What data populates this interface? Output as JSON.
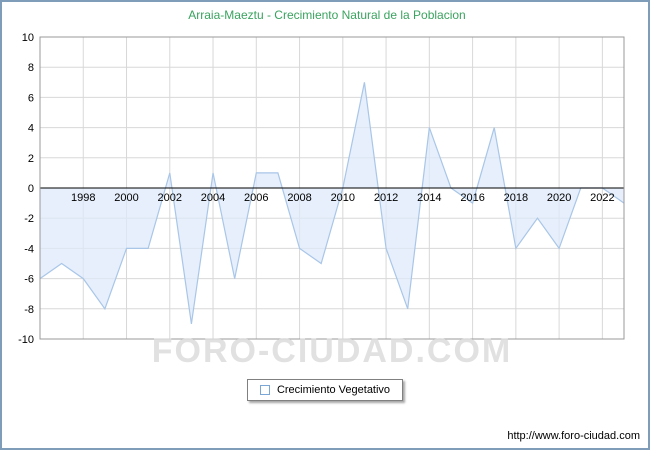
{
  "header": {
    "title": "Arraia-Maeztu - Crecimiento Natural de la Poblacion",
    "title_color": "#3aa35f"
  },
  "watermark": "FORO-CIUDAD.COM",
  "legend": {
    "label": "Crecimiento Vegetativo"
  },
  "footer": {
    "url": "http://www.foro-ciudad.com"
  },
  "chart_data": {
    "type": "area",
    "title": "Arraia-Maeztu - Crecimiento Natural de la Poblacion",
    "x": [
      1996,
      1997,
      1998,
      1999,
      2000,
      2001,
      2002,
      2003,
      2004,
      2005,
      2006,
      2007,
      2008,
      2009,
      2010,
      2011,
      2012,
      2013,
      2014,
      2015,
      2016,
      2017,
      2018,
      2019,
      2020,
      2021,
      2022,
      2023
    ],
    "series": [
      {
        "name": "Crecimiento Vegetativo",
        "values": [
          -6,
          -5,
          -6,
          -8,
          -4,
          -4,
          1,
          -9,
          1,
          -6,
          1,
          1,
          -4,
          -5,
          0,
          7,
          -4,
          -8,
          4,
          0,
          -1,
          4,
          -4,
          -2,
          -4,
          0,
          0,
          -1
        ]
      }
    ],
    "xtick_labels": [
      1998,
      2000,
      2002,
      2004,
      2006,
      2008,
      2010,
      2012,
      2014,
      2016,
      2018,
      2020,
      2022
    ],
    "ylim": [
      -10,
      10
    ],
    "ytick_step": 2,
    "baseline": 0,
    "grid": true,
    "legend_position": "bottom",
    "line_color": "#a9c6e8",
    "fill_color": "#ddeafa",
    "fill_opacity": 0.75,
    "grid_color": "#d8d8d8",
    "axis_color": "#000000",
    "border_color": "#999999"
  }
}
